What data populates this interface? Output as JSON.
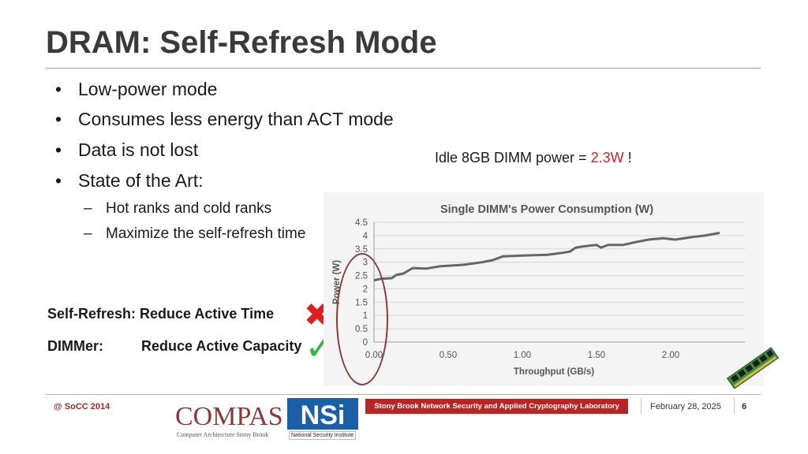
{
  "slide": {
    "title": "DRAM: Self-Refresh Mode",
    "bullets": [
      "Low-power mode",
      "Consumes less energy than ACT mode",
      "Data is not lost",
      "State of the Art:"
    ],
    "sub_bullets": [
      "Hot ranks and cold ranks",
      "Maximize the self-refresh time"
    ],
    "bullet_symbol": "•",
    "sub_symbol": "–",
    "idle_note": {
      "prefix": "Idle 8GB DIMM power = ",
      "value": "2.3W",
      "suffix": " !",
      "highlight_color": "#e02020"
    },
    "comparison": {
      "self_refresh": "Self-Refresh: Reduce Active Time",
      "dimmer_name": "DIMMer:",
      "dimmer_desc": "Reduce Active Capacity",
      "cross_mark": "✖",
      "check_mark": "✓"
    },
    "icons": [
      "red-x-icon",
      "green-check-icon",
      "dimm-module-icon"
    ]
  },
  "chart_data": {
    "type": "line",
    "title": "Single DIMM's Power Consumption (W)",
    "xlabel": "Throughput (GB/s)",
    "ylabel": "Power (W)",
    "xlim": [
      0,
      2.5
    ],
    "ylim": [
      0,
      4.5
    ],
    "x_ticks": [
      "0.00",
      "0.50",
      "1.00",
      "1.50",
      "2.00"
    ],
    "y_ticks": [
      "0",
      "0.5",
      "1",
      "1.5",
      "2",
      "2.5",
      "3",
      "3.5",
      "4",
      "4.5"
    ],
    "grid": true,
    "series": [
      {
        "color": "#666666",
        "points": [
          [
            0.0,
            2.32
          ],
          [
            0.05,
            2.38
          ],
          [
            0.12,
            2.4
          ],
          [
            0.15,
            2.52
          ],
          [
            0.2,
            2.58
          ],
          [
            0.26,
            2.78
          ],
          [
            0.35,
            2.76
          ],
          [
            0.45,
            2.85
          ],
          [
            0.6,
            2.9
          ],
          [
            0.73,
            3.0
          ],
          [
            0.8,
            3.08
          ],
          [
            0.87,
            3.22
          ],
          [
            1.0,
            3.25
          ],
          [
            1.17,
            3.28
          ],
          [
            1.27,
            3.35
          ],
          [
            1.32,
            3.4
          ],
          [
            1.36,
            3.55
          ],
          [
            1.42,
            3.6
          ],
          [
            1.5,
            3.65
          ],
          [
            1.53,
            3.55
          ],
          [
            1.58,
            3.65
          ],
          [
            1.68,
            3.65
          ],
          [
            1.76,
            3.75
          ],
          [
            1.85,
            3.85
          ],
          [
            1.95,
            3.9
          ],
          [
            2.03,
            3.85
          ],
          [
            2.15,
            3.95
          ],
          [
            2.23,
            4.0
          ],
          [
            2.33,
            4.1
          ]
        ]
      }
    ]
  },
  "footer": {
    "left": "@ SoCC 2014",
    "compas_word": "COMPAS",
    "compas_sub": "Computer Architecture Stony Brook",
    "nsi_word": "NSi",
    "nsi_caption": "National Security Institute",
    "lab": "Stony Brook Network Security and Applied Cryptography Laboratory",
    "date": "February 28, 2025",
    "page": "6",
    "brand_red": "#b52626"
  }
}
